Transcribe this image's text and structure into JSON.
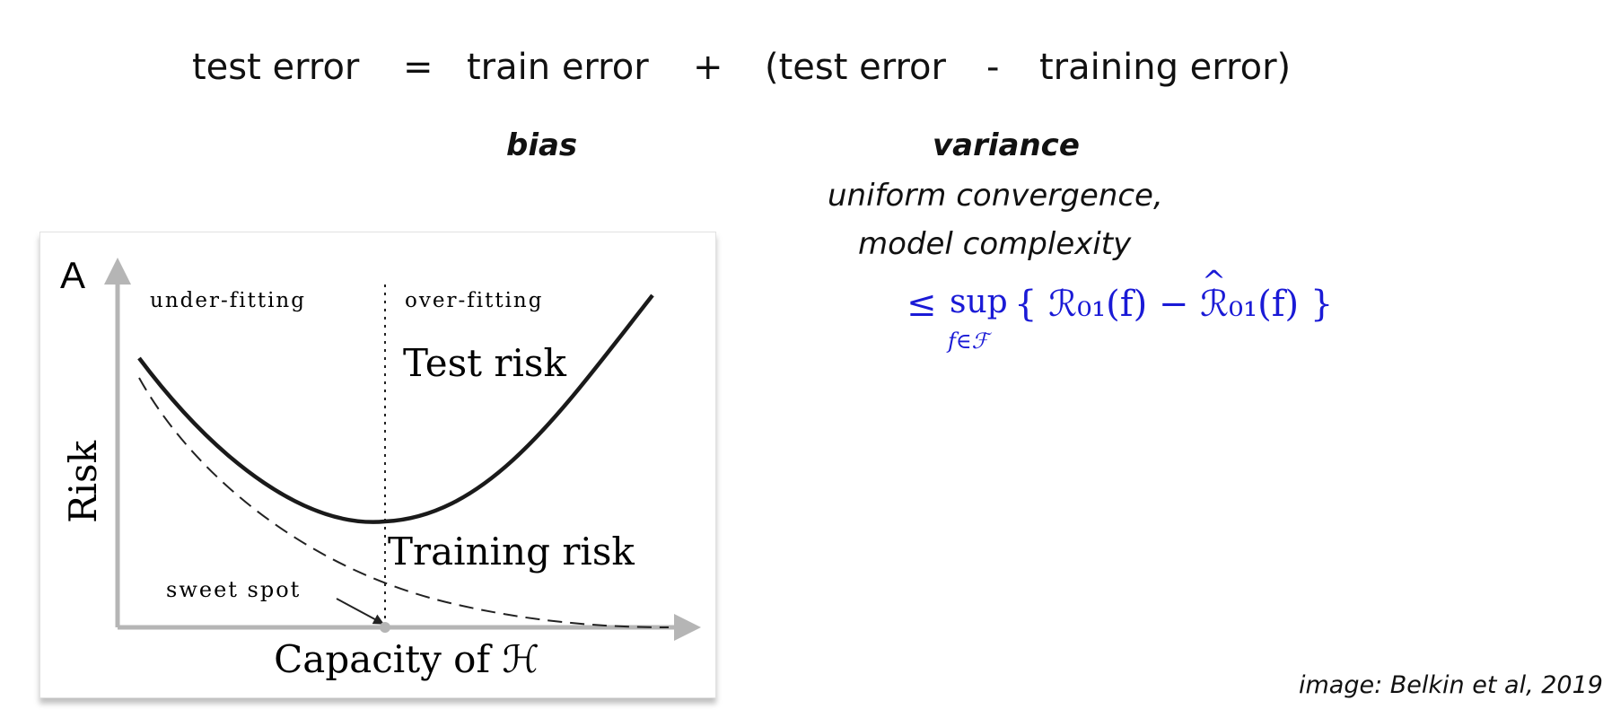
{
  "equation": {
    "lhs": "test error",
    "equals": "=",
    "term1": "train error",
    "plus": "+",
    "term2_open": "(test error",
    "minus": "-",
    "term2_close": "training error)"
  },
  "labels": {
    "bias": "bias",
    "variance": "variance",
    "variance_note_line1": "uniform convergence,",
    "variance_note_line2": "model complexity"
  },
  "formula": {
    "leq": "≤",
    "sup": "sup",
    "sub": "f∈ℱ",
    "open": "{",
    "r_true": "ℛ₀₁(f)",
    "minus": "−",
    "r_hat": "ℛ₀₁(f)",
    "hat": "^",
    "close": "}",
    "color": "#1a1ad6"
  },
  "figure": {
    "panel_letter": "A",
    "region_left": "under-fitting",
    "region_right": "over-fitting",
    "test_risk": "Test risk",
    "training_risk": "Training risk",
    "sweet_spot": "sweet spot",
    "y_axis": "Risk",
    "x_axis": "Capacity of ℋ"
  },
  "credit": "image: Belkin et al, 2019"
}
